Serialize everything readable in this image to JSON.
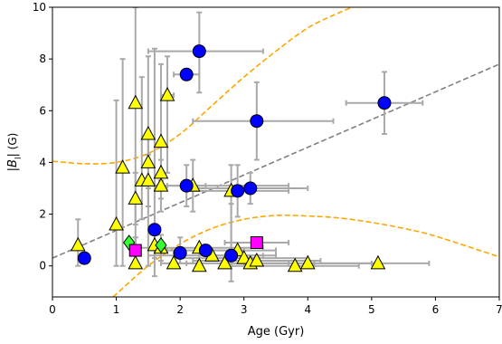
{
  "chart_data": {
    "type": "scatter",
    "xlabel": "Age (Gyr)",
    "ylabel_parts": [
      "|",
      "B",
      "l",
      "|",
      " (G)"
    ],
    "xlim": [
      0,
      7
    ],
    "ylim": [
      -1.2,
      10
    ],
    "xticks": [
      0,
      1,
      2,
      3,
      4,
      5,
      6,
      7
    ],
    "yticks": [
      0,
      2,
      4,
      6,
      8,
      10
    ],
    "grid": false,
    "colors": {
      "errorbar": "#a9a9a9",
      "upper_bound": "#ffa500",
      "lower_bound": "#ffa500",
      "fit": "#808080",
      "circle": "#0000ff",
      "triangle": "#ffff00",
      "square": "#ff00ff",
      "diamond": "#33ff33"
    },
    "fit_line": {
      "x": [
        0,
        7
      ],
      "y": [
        0.3,
        7.8
      ]
    },
    "upper_bound_curve": {
      "x": [
        0,
        0.5,
        1.0,
        1.5,
        2.0,
        2.5,
        3.0,
        3.5,
        4.0,
        4.5,
        5.0
      ],
      "y": [
        4.05,
        3.95,
        4.0,
        4.35,
        5.1,
        6.2,
        7.3,
        8.3,
        9.2,
        9.8,
        10.3
      ]
    },
    "lower_bound_curve": {
      "x": [
        0.95,
        1.5,
        2.0,
        2.5,
        3.0,
        3.5,
        4.0,
        4.5,
        5.0,
        5.5,
        6.0,
        7.0
      ],
      "y": [
        -1.2,
        0.0,
        0.85,
        1.45,
        1.8,
        1.95,
        1.93,
        1.85,
        1.68,
        1.45,
        1.15,
        0.35
      ]
    },
    "series": [
      {
        "marker": "circle",
        "points": [
          {
            "x": 0.5,
            "y": 0.3
          },
          {
            "x": 1.6,
            "y": 1.4,
            "yerr": [
              1.8,
              7.0
            ]
          },
          {
            "x": 2.0,
            "y": 0.5,
            "yerr": [
              0.4,
              0.6
            ]
          },
          {
            "x": 2.1,
            "y": 7.4,
            "xerr": [
              0.2,
              0.2
            ]
          },
          {
            "x": 2.1,
            "y": 3.1,
            "xerr": [
              0.3,
              0.3
            ],
            "yerr": [
              0.8,
              0.8
            ]
          },
          {
            "x": 2.3,
            "y": 8.3,
            "xerr": [
              0.8,
              1.0
            ],
            "yerr": [
              1.6,
              1.5
            ]
          },
          {
            "x": 2.4,
            "y": 0.6,
            "xerr": [
              0.6,
              0.6
            ]
          },
          {
            "x": 2.8,
            "y": 0.4,
            "xerr": [
              0.5,
              0.5
            ],
            "yerr": [
              1.0,
              2.0
            ]
          },
          {
            "x": 2.9,
            "y": 2.9,
            "xerr": [
              0.8,
              0.8
            ],
            "yerr": [
              1.0,
              1.0
            ]
          },
          {
            "x": 3.1,
            "y": 3.0,
            "xerr": [
              0.9,
              0.9
            ],
            "yerr": [
              0.6,
              0.6
            ]
          },
          {
            "x": 3.2,
            "y": 5.6,
            "xerr": [
              1.0,
              1.2
            ],
            "yerr": [
              1.5,
              1.5
            ]
          },
          {
            "x": 5.2,
            "y": 6.3,
            "xerr": [
              0.6,
              0.6
            ],
            "yerr": [
              1.2,
              1.2
            ]
          }
        ]
      },
      {
        "marker": "triangle",
        "points": [
          {
            "x": 0.4,
            "y": 0.8,
            "yerr": [
              0.8,
              1.0
            ]
          },
          {
            "x": 1.0,
            "y": 1.6,
            "yerr": [
              1.6,
              4.8
            ]
          },
          {
            "x": 1.1,
            "y": 3.8,
            "yerr": [
              3.8,
              4.2
            ]
          },
          {
            "x": 1.3,
            "y": 6.3,
            "yerr": [
              6.3,
              3.7
            ]
          },
          {
            "x": 1.3,
            "y": 2.6,
            "yerr": [
              1.0,
              1.0
            ]
          },
          {
            "x": 1.3,
            "y": 0.1,
            "yerr": [
              0.1,
              1.0
            ]
          },
          {
            "x": 1.4,
            "y": 3.3,
            "yerr": [
              1.5,
              4.0
            ]
          },
          {
            "x": 1.5,
            "y": 5.1,
            "yerr": [
              5.1,
              3.0
            ]
          },
          {
            "x": 1.5,
            "y": 4.0,
            "yerr": [
              1.0,
              1.0
            ]
          },
          {
            "x": 1.5,
            "y": 3.3,
            "yerr": [
              1.0,
              1.0
            ]
          },
          {
            "x": 1.6,
            "y": 0.8,
            "yerr": [
              0.5,
              0.5
            ]
          },
          {
            "x": 1.7,
            "y": 4.8,
            "yerr": [
              1.5,
              3.0
            ]
          },
          {
            "x": 1.7,
            "y": 3.6,
            "yerr": [
              1.0,
              1.0
            ]
          },
          {
            "x": 1.7,
            "y": 3.1,
            "yerr": [
              1.0,
              1.0
            ]
          },
          {
            "x": 1.7,
            "y": 0.7,
            "yerr": [
              0.5,
              0.5
            ]
          },
          {
            "x": 1.8,
            "y": 6.6,
            "yerr": [
              3.0,
              1.5
            ],
            "xerr": [
              0.1,
              0.1
            ]
          },
          {
            "x": 1.9,
            "y": 0.1,
            "yerr": [
              0.1,
              0.5
            ]
          },
          {
            "x": 2.2,
            "y": 3.1,
            "yerr": [
              1.0,
              1.0
            ],
            "xerr": [
              0.6,
              1.5
            ]
          },
          {
            "x": 2.3,
            "y": 0.0
          },
          {
            "x": 2.3,
            "y": 0.7,
            "xerr": [
              1.0,
              1.0
            ]
          },
          {
            "x": 2.5,
            "y": 0.4,
            "xerr": [
              1.0,
              1.0
            ]
          },
          {
            "x": 2.7,
            "y": 0.1,
            "xerr": [
              1.0,
              1.0
            ]
          },
          {
            "x": 2.8,
            "y": 2.9,
            "yerr": [
              2.9,
              1.0
            ]
          },
          {
            "x": 2.9,
            "y": 0.6,
            "xerr": [
              0.6,
              0.6
            ]
          },
          {
            "x": 3.0,
            "y": 0.3,
            "xerr": [
              1.0,
              1.0
            ]
          },
          {
            "x": 3.1,
            "y": 0.1,
            "xerr": [
              1.0,
              1.0
            ]
          },
          {
            "x": 3.2,
            "y": 0.2,
            "xerr": [
              1.0,
              1.0
            ]
          },
          {
            "x": 3.8,
            "y": 0.0,
            "xerr": [
              1.0,
              1.0
            ]
          },
          {
            "x": 4.0,
            "y": 0.1,
            "xerr": [
              1.0,
              1.0
            ]
          },
          {
            "x": 5.1,
            "y": 0.1,
            "xerr": [
              1.0,
              0.8
            ]
          }
        ]
      },
      {
        "marker": "square",
        "points": [
          {
            "x": 1.3,
            "y": 0.6,
            "yerr": [
              0.5,
              0.5
            ]
          },
          {
            "x": 3.2,
            "y": 0.9,
            "xerr": [
              0.5,
              0.5
            ]
          }
        ]
      },
      {
        "marker": "diamond",
        "points": [
          {
            "x": 1.2,
            "y": 0.9
          },
          {
            "x": 1.7,
            "y": 0.8
          }
        ]
      }
    ]
  }
}
